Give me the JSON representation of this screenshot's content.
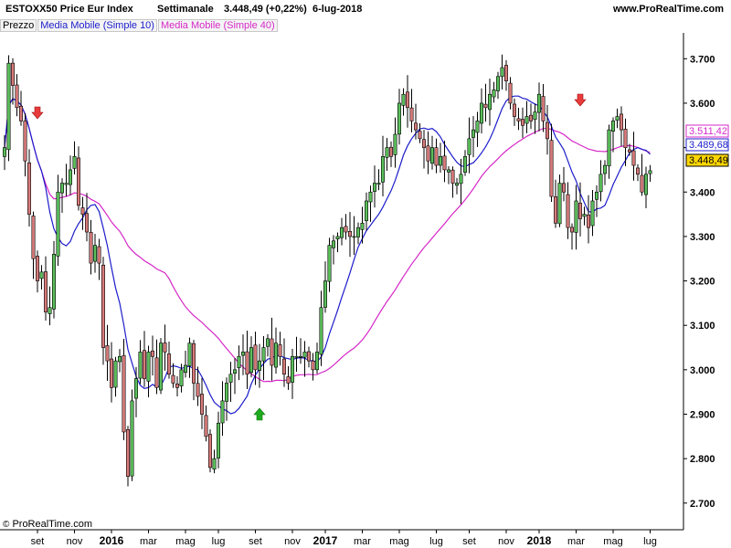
{
  "header": {
    "instrument": "ESTOXX50 Price Eur Index",
    "timeframe": "Settimanale",
    "last_change": "3.448,49 (+0,22%)",
    "date": "6-lug-2018",
    "site": "www.ProRealTime.com"
  },
  "legend": {
    "price": "Prezzo",
    "ma10": "Media Mobile (Simple 10)",
    "ma40": "Media Mobile (Simple 40)"
  },
  "credit": {
    "symbol": "©",
    "text": "ProRealTime.com"
  },
  "colors": {
    "up": "#5cbf5c",
    "down": "#d77b7b",
    "ma10": "#1c1ccc",
    "ma40": "#d628c8",
    "last_price": "#ffd700",
    "signal_up": "#1faa1f",
    "signal_down": "#e83b3b"
  },
  "chart_data": {
    "type": "candlestick",
    "title": "ESTOXX50 Price Eur Index",
    "frequency": "weekly",
    "ylim": [
      2640,
      3760
    ],
    "y_ticks": [
      {
        "value": 2700,
        "label": "2.700"
      },
      {
        "value": 2800,
        "label": "2.800"
      },
      {
        "value": 2900,
        "label": "2.900"
      },
      {
        "value": 3000,
        "label": "3.000"
      },
      {
        "value": 3100,
        "label": "3.100"
      },
      {
        "value": 3200,
        "label": "3.200"
      },
      {
        "value": 3300,
        "label": "3.300"
      },
      {
        "value": 3400,
        "label": "3.400"
      },
      {
        "value": 3500,
        "label": "3.500"
      },
      {
        "value": 3600,
        "label": "3.600"
      },
      {
        "value": 3700,
        "label": "3.700"
      }
    ],
    "x_ticks": [
      {
        "bar": 8,
        "label": "set",
        "bold": false
      },
      {
        "bar": 17,
        "label": "nov",
        "bold": false
      },
      {
        "bar": 26,
        "label": "2016",
        "bold": true
      },
      {
        "bar": 35,
        "label": "mar",
        "bold": false
      },
      {
        "bar": 44,
        "label": "mag",
        "bold": false
      },
      {
        "bar": 52,
        "label": "lug",
        "bold": false
      },
      {
        "bar": 61,
        "label": "set",
        "bold": false
      },
      {
        "bar": 70,
        "label": "nov",
        "bold": false
      },
      {
        "bar": 78,
        "label": "2017",
        "bold": true
      },
      {
        "bar": 87,
        "label": "mar",
        "bold": false
      },
      {
        "bar": 96,
        "label": "mag",
        "bold": false
      },
      {
        "bar": 105,
        "label": "lug",
        "bold": false
      },
      {
        "bar": 113,
        "label": "set",
        "bold": false
      },
      {
        "bar": 122,
        "label": "nov",
        "bold": false
      },
      {
        "bar": 130,
        "label": "2018",
        "bold": true
      },
      {
        "bar": 139,
        "label": "mar",
        "bold": false
      },
      {
        "bar": 148,
        "label": "mag",
        "bold": false
      },
      {
        "bar": 157,
        "label": "lug",
        "bold": false
      }
    ],
    "anchors": [
      [
        0,
        3500
      ],
      [
        1,
        3690
      ],
      [
        2,
        3640
      ],
      [
        3,
        3590
      ],
      [
        4,
        3560
      ],
      [
        5,
        3470
      ],
      [
        6,
        3350
      ],
      [
        7,
        3250
      ],
      [
        8,
        3200
      ],
      [
        9,
        3220
      ],
      [
        10,
        3130
      ],
      [
        11,
        3140
      ],
      [
        12,
        3260
      ],
      [
        13,
        3400
      ],
      [
        14,
        3420
      ],
      [
        15,
        3420
      ],
      [
        16,
        3450
      ],
      [
        17,
        3480
      ],
      [
        18,
        3370
      ],
      [
        19,
        3350
      ],
      [
        20,
        3310
      ],
      [
        21,
        3240
      ],
      [
        22,
        3280
      ],
      [
        23,
        3240
      ],
      [
        24,
        3050
      ],
      [
        25,
        3020
      ],
      [
        26,
        2960
      ],
      [
        27,
        3020
      ],
      [
        28,
        3030
      ],
      [
        29,
        2860
      ],
      [
        30,
        2760
      ],
      [
        31,
        2930
      ],
      [
        32,
        2980
      ],
      [
        33,
        3040
      ],
      [
        34,
        2980
      ],
      [
        35,
        3040
      ],
      [
        36,
        3030
      ],
      [
        37,
        2960
      ],
      [
        38,
        3060
      ],
      [
        39,
        3040
      ],
      [
        40,
        2990
      ],
      [
        41,
        2970
      ],
      [
        42,
        2960
      ],
      [
        43,
        3000
      ],
      [
        44,
        3010
      ],
      [
        45,
        3060
      ],
      [
        46,
        2970
      ],
      [
        47,
        2940
      ],
      [
        48,
        2900
      ],
      [
        49,
        2850
      ],
      [
        50,
        2780
      ],
      [
        51,
        2800
      ],
      [
        52,
        2880
      ],
      [
        53,
        2930
      ],
      [
        54,
        2970
      ],
      [
        55,
        2990
      ],
      [
        56,
        3000
      ],
      [
        57,
        3030
      ],
      [
        58,
        3040
      ],
      [
        59,
        2990
      ],
      [
        60,
        3050
      ],
      [
        61,
        3000
      ],
      [
        62,
        3020
      ],
      [
        63,
        3050
      ],
      [
        64,
        3070
      ],
      [
        65,
        3010
      ],
      [
        66,
        3060
      ],
      [
        67,
        3030
      ],
      [
        68,
        2990
      ],
      [
        69,
        2970
      ],
      [
        70,
        3030
      ],
      [
        71,
        3030
      ],
      [
        72,
        3030
      ],
      [
        73,
        3040
      ],
      [
        74,
        3020
      ],
      [
        75,
        3000
      ],
      [
        76,
        3040
      ],
      [
        77,
        3140
      ],
      [
        78,
        3200
      ],
      [
        79,
        3280
      ],
      [
        80,
        3290
      ],
      [
        81,
        3300
      ],
      [
        82,
        3320
      ],
      [
        83,
        3310
      ],
      [
        84,
        3300
      ],
      [
        85,
        3300
      ],
      [
        86,
        3320
      ],
      [
        87,
        3330
      ],
      [
        88,
        3380
      ],
      [
        89,
        3400
      ],
      [
        90,
        3420
      ],
      [
        91,
        3420
      ],
      [
        92,
        3480
      ],
      [
        93,
        3500
      ],
      [
        94,
        3480
      ],
      [
        95,
        3530
      ],
      [
        96,
        3600
      ],
      [
        97,
        3620
      ],
      [
        98,
        3590
      ],
      [
        99,
        3560
      ],
      [
        100,
        3540
      ],
      [
        101,
        3520
      ],
      [
        102,
        3500
      ],
      [
        103,
        3470
      ],
      [
        104,
        3500
      ],
      [
        105,
        3460
      ],
      [
        106,
        3480
      ],
      [
        107,
        3450
      ],
      [
        108,
        3450
      ],
      [
        109,
        3420
      ],
      [
        110,
        3420
      ],
      [
        111,
        3440
      ],
      [
        112,
        3480
      ],
      [
        113,
        3520
      ],
      [
        114,
        3540
      ],
      [
        115,
        3560
      ],
      [
        116,
        3600
      ],
      [
        117,
        3590
      ],
      [
        118,
        3620
      ],
      [
        119,
        3630
      ],
      [
        120,
        3660
      ],
      [
        121,
        3680
      ],
      [
        122,
        3650
      ],
      [
        123,
        3600
      ],
      [
        124,
        3570
      ],
      [
        125,
        3560
      ],
      [
        126,
        3550
      ],
      [
        127,
        3570
      ],
      [
        128,
        3560
      ],
      [
        129,
        3580
      ],
      [
        130,
        3620
      ],
      [
        131,
        3560
      ],
      [
        132,
        3520
      ],
      [
        133,
        3390
      ],
      [
        134,
        3330
      ],
      [
        135,
        3420
      ],
      [
        136,
        3400
      ],
      [
        137,
        3320
      ],
      [
        138,
        3310
      ],
      [
        139,
        3380
      ],
      [
        140,
        3340
      ],
      [
        141,
        3350
      ],
      [
        142,
        3320
      ],
      [
        143,
        3380
      ],
      [
        144,
        3400
      ],
      [
        145,
        3440
      ],
      [
        146,
        3460
      ],
      [
        147,
        3540
      ],
      [
        148,
        3560
      ],
      [
        149,
        3570
      ],
      [
        150,
        3540
      ],
      [
        151,
        3500
      ],
      [
        152,
        3490
      ],
      [
        153,
        3460
      ],
      [
        154,
        3440
      ],
      [
        155,
        3400
      ],
      [
        156,
        3440
      ],
      [
        157,
        3448
      ]
    ],
    "series": [
      {
        "name": "Prezzo",
        "type": "candlestick"
      },
      {
        "name": "Media Mobile (Simple 10)",
        "period": 10,
        "color": "#1c1ccc"
      },
      {
        "name": "Media Mobile (Simple 40)",
        "period": 40,
        "color": "#d628c8"
      }
    ],
    "value_labels": [
      {
        "series": "Media Mobile (Simple 40)",
        "value": 3511.42,
        "label": "3.511,42"
      },
      {
        "series": "Media Mobile (Simple 10)",
        "value": 3489.68,
        "label": "3.489,68"
      },
      {
        "series": "Prezzo",
        "value": 3448.49,
        "label": "3.448,49"
      }
    ],
    "signals": [
      {
        "bar": 8,
        "type": "sell"
      },
      {
        "bar": 62,
        "type": "buy"
      },
      {
        "bar": 140,
        "type": "sell"
      }
    ]
  }
}
